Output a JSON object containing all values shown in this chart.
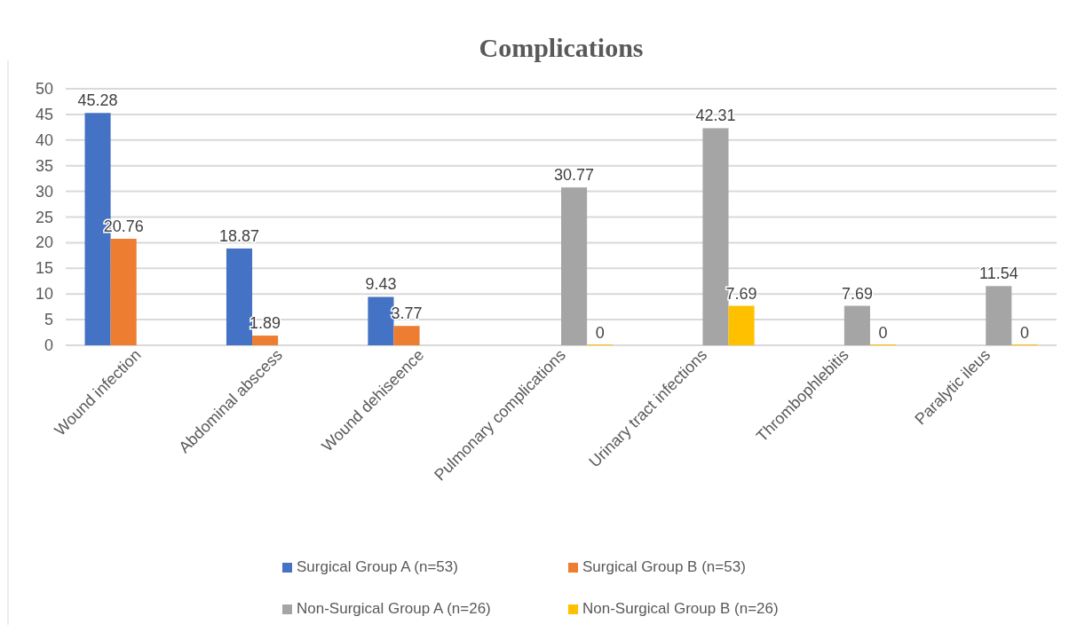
{
  "chart_data": {
    "type": "bar",
    "title": "Complications",
    "categories": [
      "Wound infection",
      "Abdominal abscess",
      "Wound dehiseence",
      "Pulmonary complications",
      "Urinary tract infections",
      "Thrombophlebitis",
      "Paralytic ileus"
    ],
    "series": [
      {
        "name": "Surgical Group A (n=53)",
        "color": "#4472c4",
        "values": [
          45.28,
          18.87,
          9.43,
          null,
          null,
          null,
          null
        ]
      },
      {
        "name": "Surgical Group B (n=53)",
        "color": "#ed7d31",
        "values": [
          20.76,
          1.89,
          3.77,
          null,
          null,
          null,
          null
        ]
      },
      {
        "name": "Non-Surgical Group A (n=26)",
        "color": "#a5a5a5",
        "values": [
          null,
          null,
          null,
          30.77,
          42.31,
          7.69,
          11.54
        ]
      },
      {
        "name": "Non-Surgical Group B (n=26)",
        "color": "#ffc000",
        "values": [
          null,
          null,
          null,
          0,
          7.69,
          0,
          0
        ]
      }
    ],
    "ylim": [
      0,
      50
    ],
    "yticks": [
      0,
      5,
      10,
      15,
      20,
      25,
      30,
      35,
      40,
      45,
      50
    ],
    "grid": "y",
    "legend": "bottom",
    "data_labels": true
  }
}
